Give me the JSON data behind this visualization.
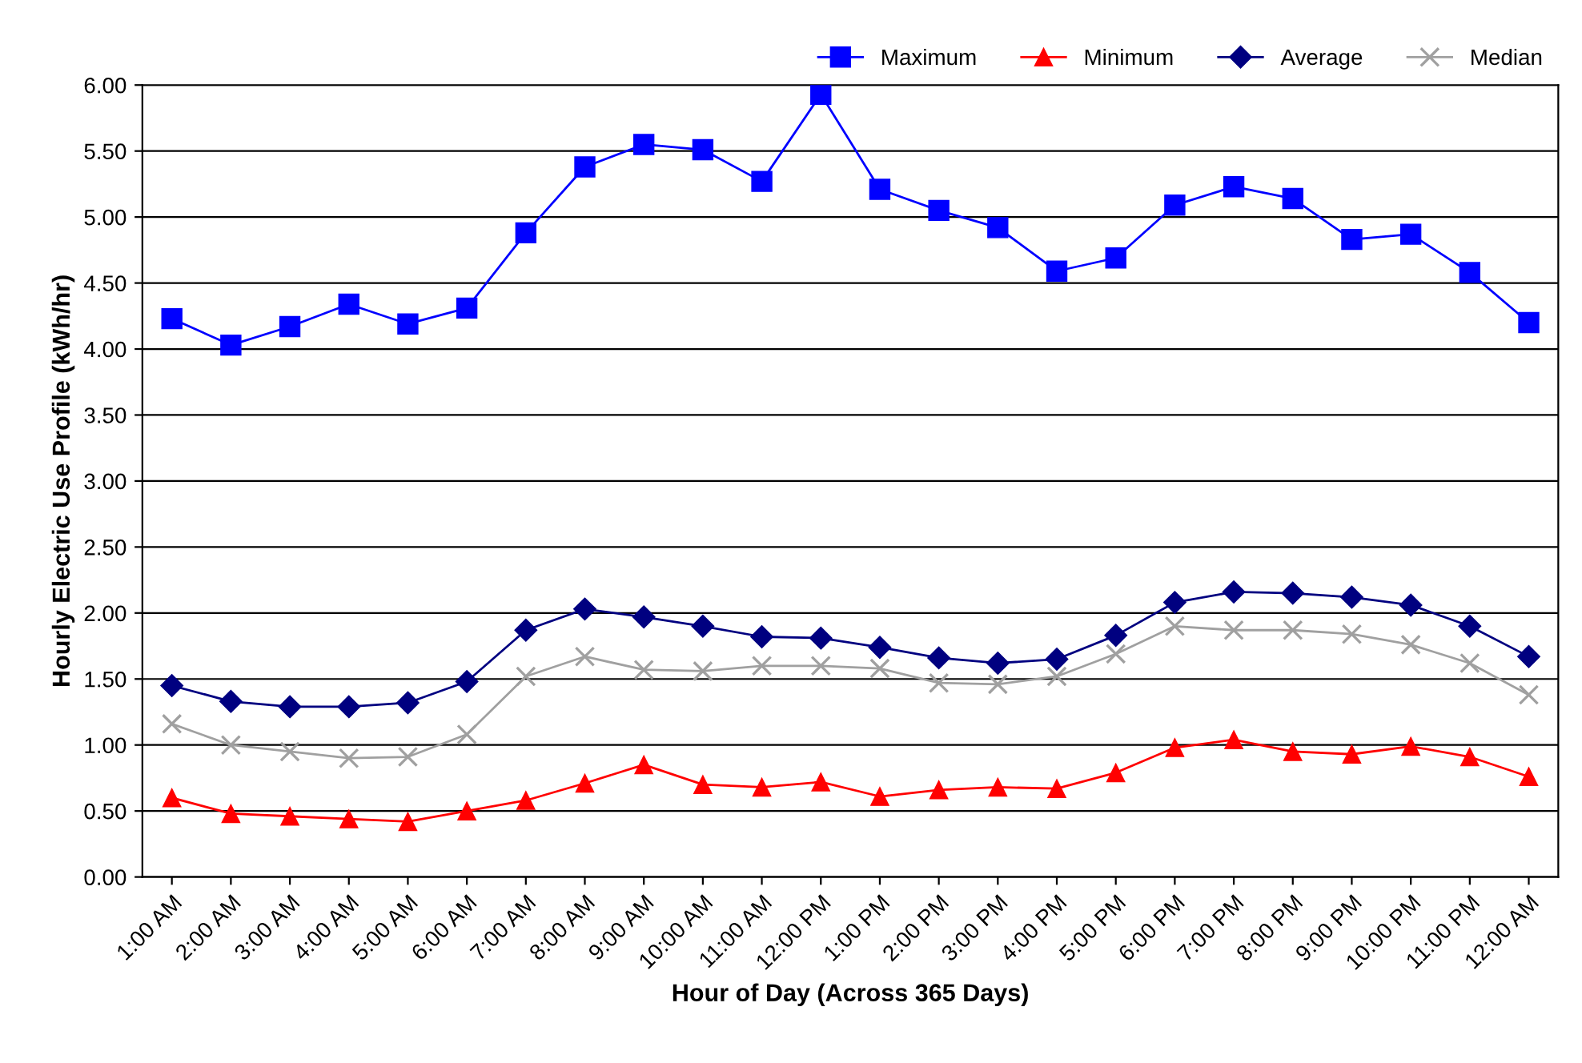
{
  "chart_data": {
    "type": "line",
    "xlabel": "Hour of Day (Across 365 Days)",
    "ylabel": "Hourly Electric Use Profile (kWh/hr)",
    "categories": [
      "1:00 AM",
      "2:00 AM",
      "3:00 AM",
      "4:00 AM",
      "5:00 AM",
      "6:00 AM",
      "7:00 AM",
      "8:00 AM",
      "9:00 AM",
      "10:00 AM",
      "11:00 AM",
      "12:00 PM",
      "1:00 PM",
      "2:00 PM",
      "3:00 PM",
      "4:00 PM",
      "5:00 PM",
      "6:00 PM",
      "7:00 PM",
      "8:00 PM",
      "9:00 PM",
      "10:00 PM",
      "11:00 PM",
      "12:00 AM"
    ],
    "series": [
      {
        "name": "Maximum",
        "color": "#0000ff",
        "marker": "square",
        "values": [
          4.23,
          4.03,
          4.17,
          4.34,
          4.19,
          4.31,
          4.88,
          5.38,
          5.55,
          5.51,
          5.27,
          5.93,
          5.21,
          5.05,
          4.92,
          4.59,
          4.69,
          5.09,
          5.23,
          5.14,
          4.83,
          4.87,
          4.58,
          4.2
        ]
      },
      {
        "name": "Minimum",
        "color": "#ff0000",
        "marker": "triangle",
        "values": [
          0.6,
          0.48,
          0.46,
          0.44,
          0.42,
          0.5,
          0.58,
          0.71,
          0.85,
          0.7,
          0.68,
          0.72,
          0.61,
          0.66,
          0.68,
          0.67,
          0.79,
          0.98,
          1.04,
          0.95,
          0.93,
          0.99,
          0.91,
          0.76
        ]
      },
      {
        "name": "Average",
        "color": "#000080",
        "marker": "diamond",
        "values": [
          1.45,
          1.33,
          1.29,
          1.29,
          1.32,
          1.48,
          1.87,
          2.03,
          1.97,
          1.9,
          1.82,
          1.81,
          1.74,
          1.66,
          1.62,
          1.65,
          1.83,
          2.08,
          2.16,
          2.15,
          2.12,
          2.06,
          1.9,
          1.67
        ]
      },
      {
        "name": "Median",
        "color": "#a0a0a0",
        "marker": "cross",
        "values": [
          1.16,
          1.0,
          0.95,
          0.9,
          0.91,
          1.08,
          1.52,
          1.67,
          1.57,
          1.56,
          1.6,
          1.6,
          1.58,
          1.47,
          1.46,
          1.52,
          1.69,
          1.9,
          1.87,
          1.87,
          1.84,
          1.76,
          1.62,
          1.38
        ]
      }
    ],
    "ylim": [
      0,
      6
    ],
    "yticks": [
      {
        "value": 0,
        "label": "0.00"
      },
      {
        "value": 0.5,
        "label": "0.50"
      },
      {
        "value": 1,
        "label": "1.00"
      },
      {
        "value": 1.5,
        "label": "1.50"
      },
      {
        "value": 2,
        "label": "2.00"
      },
      {
        "value": 2.5,
        "label": "2.50"
      },
      {
        "value": 3,
        "label": "3.00"
      },
      {
        "value": 3.5,
        "label": "3.50"
      },
      {
        "value": 4,
        "label": "4.00"
      },
      {
        "value": 4.5,
        "label": "4.50"
      },
      {
        "value": 5,
        "label": "5.00"
      },
      {
        "value": 5.5,
        "label": "5.50"
      },
      {
        "value": 6,
        "label": "6.00"
      }
    ],
    "grid": "y",
    "legend": "top right",
    "line_style": "solid"
  }
}
